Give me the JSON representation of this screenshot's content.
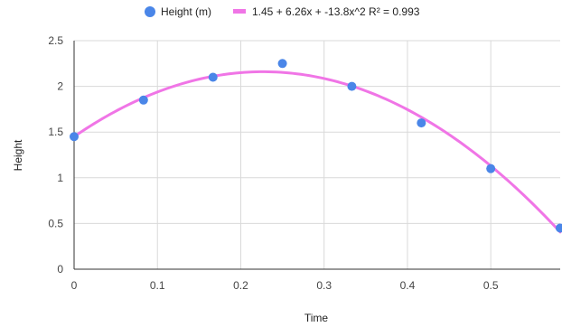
{
  "chart_data": {
    "type": "scatter",
    "xlabel": "Time",
    "ylabel": "Height",
    "xlim": [
      0,
      0.5833
    ],
    "ylim": [
      0,
      2.5
    ],
    "x_ticks": [
      0,
      0.1,
      0.2,
      0.3,
      0.4,
      0.5
    ],
    "x_tick_labels": [
      "0",
      "0.1",
      "0.2",
      "0.3",
      "0.4",
      "0.5"
    ],
    "y_ticks": [
      0,
      0.5,
      1,
      1.5,
      2,
      2.5
    ],
    "y_tick_labels": [
      "0",
      "0.5",
      "1",
      "1.5",
      "2",
      "2.5"
    ],
    "grid": true,
    "legend_position": "top",
    "series": [
      {
        "name": "Height (m)",
        "kind": "points",
        "color": "#4a86e8",
        "x": [
          0,
          0.0833,
          0.1667,
          0.25,
          0.3333,
          0.4167,
          0.5,
          0.5833
        ],
        "y": [
          1.45,
          1.85,
          2.1,
          2.25,
          2.0,
          1.6,
          1.1,
          0.45
        ]
      },
      {
        "name": "1.45 + 6.26x + -13.8x^2 R² = 0.993",
        "kind": "trendline",
        "color": "#f075e6",
        "equation": {
          "a": -13.8,
          "b": 6.26,
          "c": 1.45
        },
        "r_squared": 0.993
      }
    ]
  }
}
